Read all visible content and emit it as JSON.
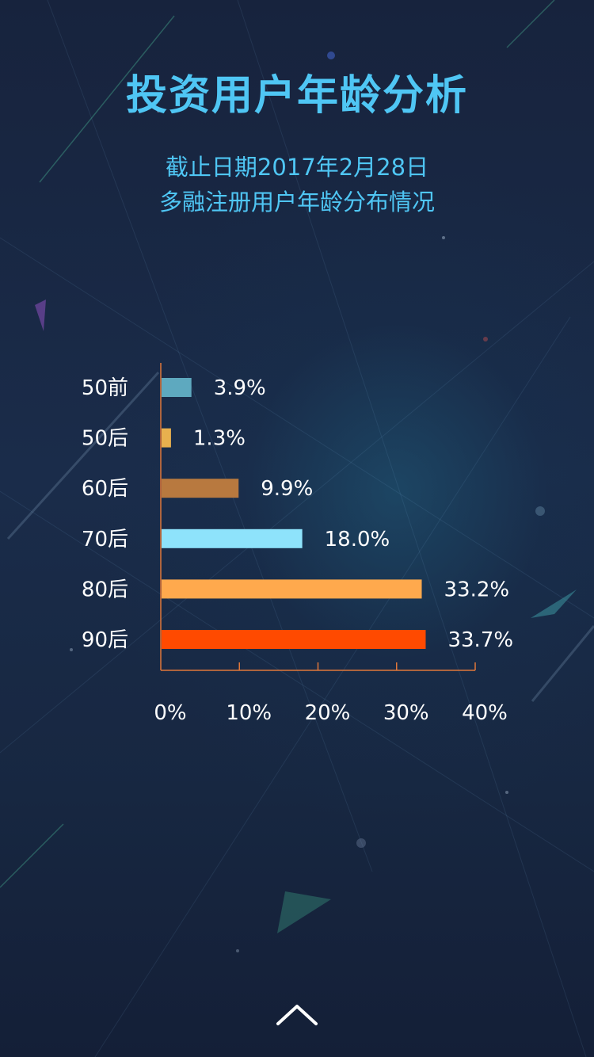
{
  "header": {
    "title": "投资用户年龄分析",
    "subtitle_line1": "截止日期2017年2月28日",
    "subtitle_line2": "多融注册用户年龄分布情况"
  },
  "colors": {
    "background": "#17233d",
    "title": "#4fc6f4",
    "axis": "#e0773a",
    "text": "#ffffff"
  },
  "chart_data": {
    "type": "bar",
    "orientation": "horizontal",
    "categories": [
      "50前",
      "50后",
      "60后",
      "70后",
      "80后",
      "90后"
    ],
    "values": [
      3.9,
      1.3,
      9.9,
      18.0,
      33.2,
      33.7
    ],
    "value_labels": [
      "3.9%",
      "1.3%",
      "9.9%",
      "18.0%",
      "33.2%",
      "33.7%"
    ],
    "bar_colors": [
      "#5ea9bf",
      "#e8b04e",
      "#b8793f",
      "#8ee3fb",
      "#ffa94d",
      "#ff4a00"
    ],
    "xlim": [
      0,
      40
    ],
    "x_ticks": [
      "0%",
      "10%",
      "20%",
      "30%",
      "40%"
    ],
    "grid": false
  },
  "navigation": {
    "up_icon": "chevron-up-icon"
  }
}
